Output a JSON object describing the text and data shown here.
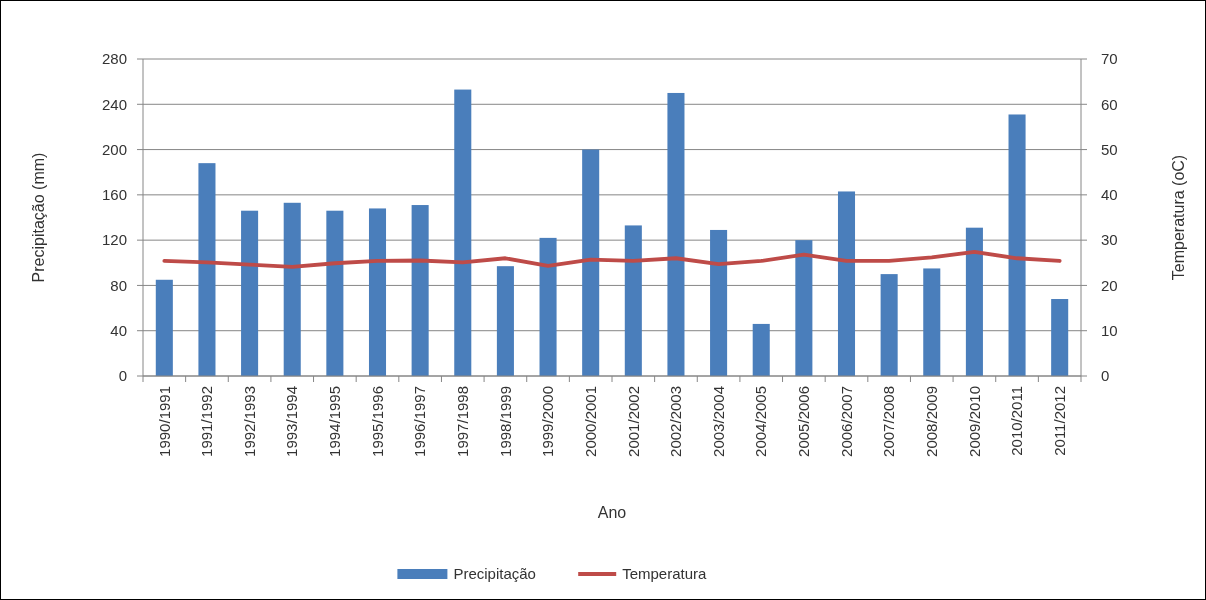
{
  "chart_data": {
    "type": "bar",
    "xlabel": "Ano",
    "ylabel": "Precipitação (mm)",
    "y2label": "Temperatura (oC)",
    "categories": [
      "1990/1991",
      "1991/1992",
      "1992/1993",
      "1993/1994",
      "1994/1995",
      "1995/1996",
      "1996/1997",
      "1997/1998",
      "1998/1999",
      "1999/2000",
      "2000/2001",
      "2001/2002",
      "2002/2003",
      "2003/2004",
      "2004/2005",
      "2005/2006",
      "2006/2007",
      "2007/2008",
      "2008/2009",
      "2009/2010",
      "2010/2011",
      "2011/2012"
    ],
    "series": [
      {
        "name": "Precipitação",
        "color": "#4a7ebb",
        "values": [
          85,
          188,
          146,
          153,
          146,
          148,
          151,
          253,
          97,
          122,
          200,
          133,
          250,
          129,
          46,
          120,
          163,
          90,
          95,
          131,
          231,
          68
        ]
      },
      {
        "name": "Temperatura",
        "type": "line",
        "axis": "y2",
        "color": "#be4b48",
        "values": [
          25.4,
          25.1,
          24.6,
          24.1,
          24.9,
          25.4,
          25.5,
          25.1,
          26.0,
          24.3,
          25.7,
          25.4,
          26.0,
          24.7,
          25.4,
          26.8,
          25.4,
          25.4,
          26.2,
          27.4,
          26.0,
          25.4
        ]
      }
    ],
    "ylim": [
      0,
      280
    ],
    "yticks": [
      0,
      40,
      80,
      120,
      160,
      200,
      240,
      280
    ],
    "y2lim": [
      0,
      70
    ],
    "y2ticks": [
      0,
      10,
      20,
      30,
      40,
      50,
      60,
      70
    ],
    "grid": "y",
    "legend": "bottom"
  }
}
